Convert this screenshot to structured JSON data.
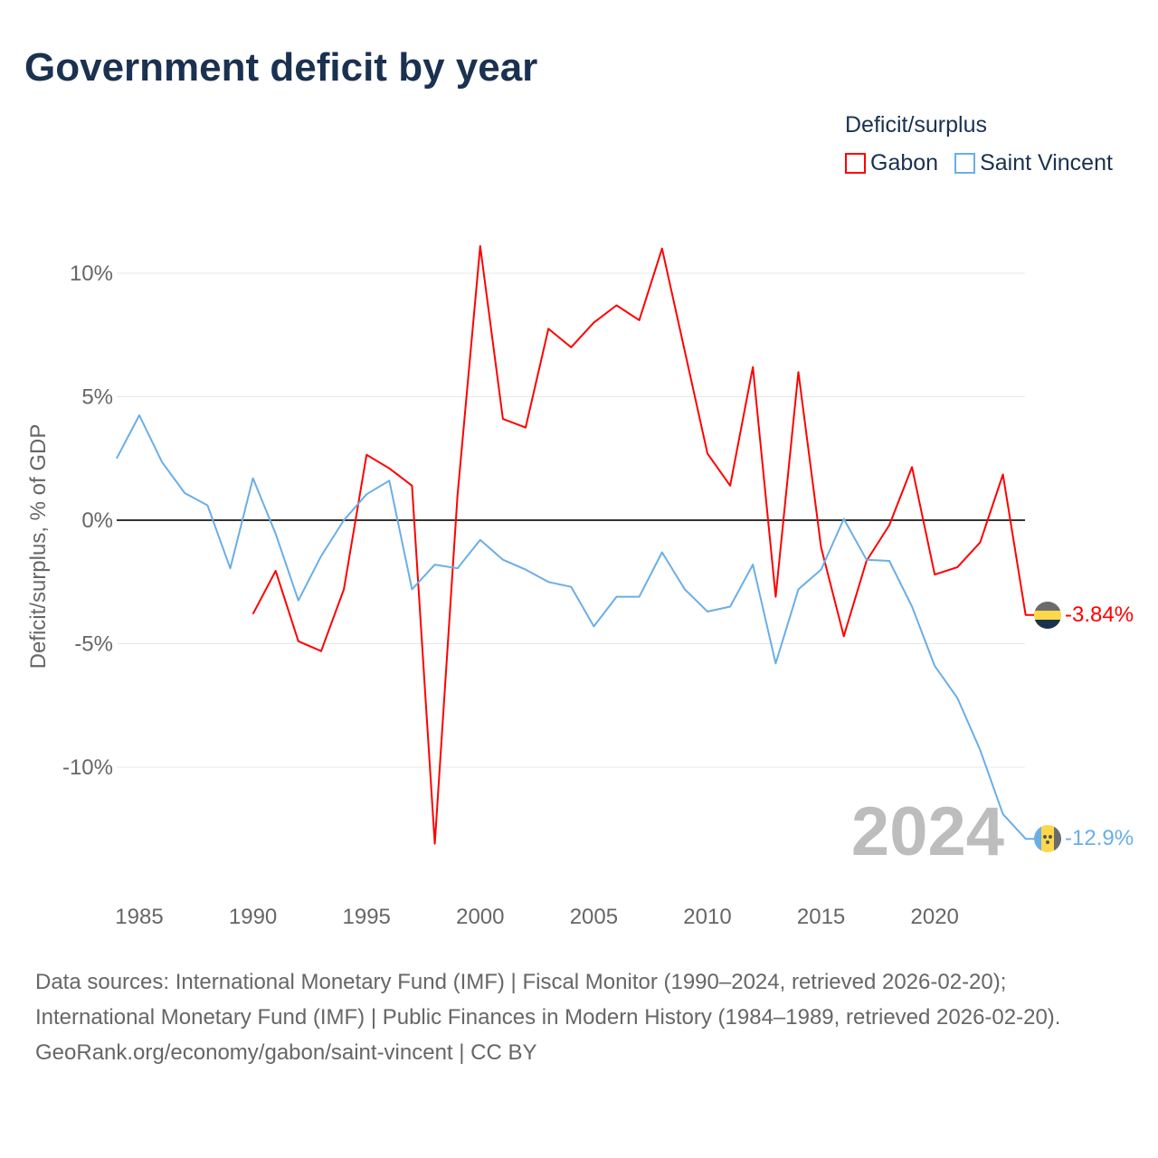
{
  "title": "Government deficit by year",
  "legend": {
    "title": "Deficit/surplus"
  },
  "footer": {
    "sources": "Data sources: International Monetary Fund (IMF) | Fiscal Monitor (1990–2024, retrieved 2026-02-20); International Monetary Fund (IMF) | Public Finances in Modern History (1984–1989, retrieved 2026-02-20).",
    "credit": "GeoRank.org/economy/gabon/saint-vincent | CC BY"
  },
  "chart_data": {
    "type": "line",
    "title": "Government deficit by year",
    "xlabel": "",
    "ylabel": "Deficit/surplus, % of GDP",
    "xlim": [
      1984,
      2024
    ],
    "ylim": [
      -14,
      12
    ],
    "x_ticks": [
      1985,
      1990,
      1995,
      2000,
      2005,
      2010,
      2015,
      2020
    ],
    "y_ticks": [
      {
        "v": 10,
        "label": "10%"
      },
      {
        "v": 5,
        "label": "5%"
      },
      {
        "v": 0,
        "label": "0%"
      },
      {
        "v": -5,
        "label": "-5%"
      },
      {
        "v": -10,
        "label": "-10%"
      }
    ],
    "year_watermark": "2024",
    "legend_position": "top-right",
    "series": [
      {
        "name": "Gabon",
        "color": "#ff0000",
        "end_label": "-3.84%",
        "x": [
          1990,
          1991,
          1992,
          1993,
          1994,
          1995,
          1996,
          1997,
          1998,
          1999,
          2000,
          2001,
          2002,
          2003,
          2004,
          2005,
          2006,
          2007,
          2008,
          2009,
          2010,
          2011,
          2012,
          2013,
          2014,
          2015,
          2016,
          2017,
          2018,
          2019,
          2020,
          2021,
          2022,
          2023,
          2024
        ],
        "values": [
          -3.8,
          -2.05,
          -4.9,
          -5.3,
          -2.8,
          2.65,
          2.1,
          1.4,
          -13.1,
          1.0,
          11.1,
          4.1,
          3.75,
          7.75,
          7.0,
          8.0,
          8.7,
          8.1,
          11.0,
          6.85,
          2.7,
          1.4,
          6.2,
          -3.1,
          6.0,
          -1.1,
          -4.7,
          -1.65,
          -0.2,
          2.15,
          -2.2,
          -1.9,
          -0.9,
          1.85,
          -3.84
        ]
      },
      {
        "name": "Saint Vincent",
        "color": "#6aaee8",
        "end_label": "-12.9%",
        "x": [
          1984,
          1985,
          1986,
          1987,
          1988,
          1989,
          1990,
          1991,
          1992,
          1993,
          1994,
          1995,
          1996,
          1997,
          1998,
          1999,
          2000,
          2001,
          2002,
          2003,
          2004,
          2005,
          2006,
          2007,
          2008,
          2009,
          2010,
          2011,
          2012,
          2013,
          2014,
          2015,
          2016,
          2017,
          2018,
          2019,
          2020,
          2021,
          2022,
          2023,
          2024
        ],
        "values": [
          2.5,
          4.25,
          2.35,
          1.1,
          0.6,
          -1.95,
          1.7,
          -0.55,
          -3.25,
          -1.45,
          0,
          1.05,
          1.6,
          -2.8,
          -1.8,
          -1.95,
          -0.8,
          -1.6,
          -2.0,
          -2.5,
          -2.7,
          -4.3,
          -3.1,
          -3.1,
          -1.3,
          -2.8,
          -3.7,
          -3.5,
          -1.8,
          -5.8,
          -2.8,
          -2.0,
          0.05,
          -1.6,
          -1.65,
          -3.5,
          -5.9,
          -7.2,
          -9.3,
          -11.9,
          -12.9
        ]
      }
    ]
  }
}
